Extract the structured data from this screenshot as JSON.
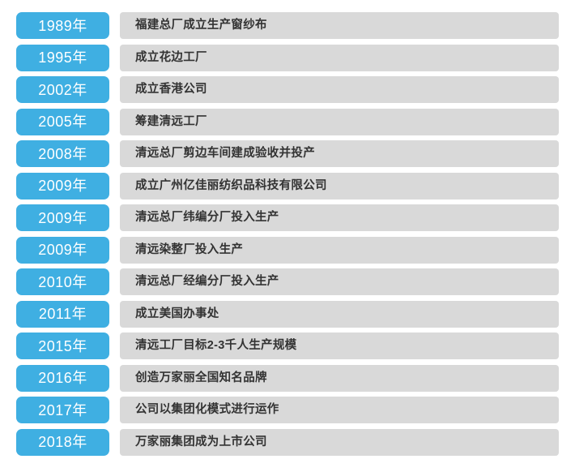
{
  "page": {
    "background_color": "#ffffff"
  },
  "timeline": {
    "accent_color": "#3fafe2",
    "bar_color": "#d9d9d9",
    "year_text_color": "#ffffff",
    "event_text_color": "#333333",
    "items": [
      {
        "year": "1989年",
        "event": "福建总厂成立生产窗纱布"
      },
      {
        "year": "1995年",
        "event": "成立花边工厂"
      },
      {
        "year": "2002年",
        "event": "成立香港公司"
      },
      {
        "year": "2005年",
        "event": "筹建清远工厂"
      },
      {
        "year": "2008年",
        "event": "清远总厂剪边车间建成验收并投产"
      },
      {
        "year": "2009年",
        "event": "成立广州亿佳丽纺织品科技有限公司"
      },
      {
        "year": "2009年",
        "event": "清远总厂纬编分厂投入生产"
      },
      {
        "year": "2009年",
        "event": "清远染整厂投入生产"
      },
      {
        "year": "2010年",
        "event": "清远总厂经编分厂投入生产"
      },
      {
        "year": "2011年",
        "event": "成立美国办事处"
      },
      {
        "year": "2015年",
        "event": "清远工厂目标2-3千人生产规模"
      },
      {
        "year": "2016年",
        "event": "创造万家丽全国知名品牌"
      },
      {
        "year": "2017年",
        "event": "公司以集团化模式进行运作"
      },
      {
        "year": "2018年",
        "event": "万家丽集团成为上市公司"
      }
    ]
  }
}
